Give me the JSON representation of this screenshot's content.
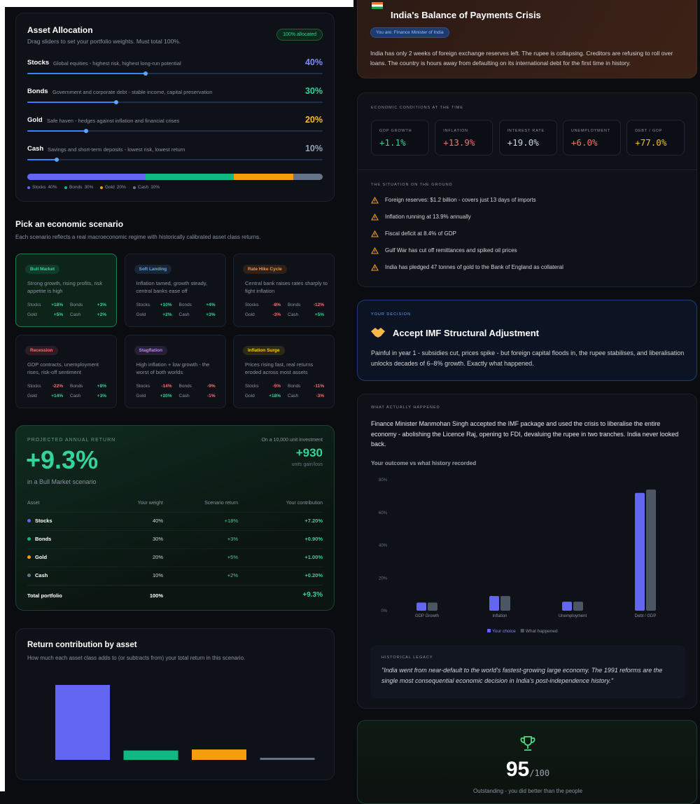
{
  "allocation": {
    "title": "Asset Allocation",
    "subtitle": "Drag sliders to set your portfolio weights. Must total 100%.",
    "badge": "100% allocated",
    "assets": [
      {
        "name": "Stocks",
        "description": "Global equities - highest risk, highest long-run potential",
        "color": "#6366f1",
        "label_color": "#818cf8"
      },
      {
        "name": "Bonds",
        "description": "Government and corporate debt - stable income, capital preservation",
        "color": "#10b981",
        "label_color": "#34d399"
      },
      {
        "name": "Gold",
        "description": "Safe haven - hedges against inflation and financial crises",
        "color": "#f59e0b",
        "label_color": "#fbbf24"
      },
      {
        "name": "Cash",
        "description": "Savings and short-term deposits - lowest risk, lowest return",
        "color": "#64748b",
        "label_color": "#94a3b8"
      }
    ],
    "weights": [
      40,
      30,
      20,
      10
    ],
    "weight_labels": [
      "40%",
      "30%",
      "20%",
      "10%"
    ]
  },
  "scenarios": {
    "title": "Pick an economic scenario",
    "subtitle": "Each scenario reflects a real macroeconomic regime with historically calibrated asset class returns.",
    "items": [
      {
        "name": "Bull Market",
        "description": "Strong growth, rising profits, risk appetite is high",
        "color": "#34d399",
        "returns": [
          "+18%",
          "+3%",
          "+5%",
          "+2%"
        ],
        "selected": true
      },
      {
        "name": "Soft Landing",
        "description": "Inflation tamed, growth steady, central banks ease off",
        "color": "#60a5fa",
        "returns": [
          "+10%",
          "+4%",
          "+2%",
          "+3%"
        ]
      },
      {
        "name": "Rate Hike Cycle",
        "description": "Central bank raises rates sharply to fight inflation",
        "color": "#fb923c",
        "returns": [
          "-8%",
          "-12%",
          "-3%",
          "+5%"
        ]
      },
      {
        "name": "Recession",
        "description": "GDP contracts, unemployment rises, risk-off sentiment",
        "color": "#f87171",
        "returns": [
          "-22%",
          "+8%",
          "+14%",
          "+3%"
        ]
      },
      {
        "name": "Stagflation",
        "description": "High inflation + low growth - the worst of both worlds",
        "color": "#c084fc",
        "returns": [
          "-14%",
          "-9%",
          "+20%",
          "-1%"
        ]
      },
      {
        "name": "Inflation Surge",
        "description": "Prices rising fast, real returns eroded across most assets",
        "color": "#facc15",
        "returns": [
          "-5%",
          "-11%",
          "+18%",
          "-3%"
        ]
      }
    ]
  },
  "projection": {
    "label": "PROJECTED ANNUAL RETURN",
    "value": "+9.3%",
    "caption": "in a Bull Market scenario",
    "investment_label": "On a 10,000 unit investment",
    "gain": "+930",
    "gain_unit": "units gain/loss",
    "headers": [
      "Asset",
      "Your weight",
      "Scenario return",
      "Your contribution"
    ],
    "rows": [
      [
        "Stocks",
        "40%",
        "+18%",
        "+7.20%"
      ],
      [
        "Bonds",
        "30%",
        "+3%",
        "+0.90%"
      ],
      [
        "Gold",
        "20%",
        "+5%",
        "+1.00%"
      ],
      [
        "Cash",
        "10%",
        "+2%",
        "+0.20%"
      ]
    ],
    "total": [
      "Total portfolio",
      "100%",
      "+9.3%"
    ]
  },
  "contribution_chart": {
    "type": "bar",
    "title": "Return contribution by asset",
    "subtitle": "How much each asset class adds to (or subtracts from) your total return in this scenario.",
    "values": [
      7.2,
      0.9,
      1.0,
      0.2
    ],
    "colors": [
      "#6366f1",
      "#10b981",
      "#f59e0b",
      "#64748b"
    ]
  },
  "crisis": {
    "title": "India's Balance of Payments Crisis",
    "role": "You are: Finance Minister of India",
    "intro": "India has only 2 weeks of foreign exchange reserves left. The rupee is collapsing. Creditors are refusing to roll over loans. The country is hours away from defaulting on its international debt for the first time in history."
  },
  "conditions": {
    "label": "ECONOMIC CONDITIONS AT THE TIME",
    "items": [
      {
        "label": "GDP GROWTH",
        "value": "+1.1%",
        "color": "#34d399"
      },
      {
        "label": "INFLATION",
        "value": "+13.9%",
        "color": "#f87171"
      },
      {
        "label": "INTEREST RATE",
        "value": "+19.0%",
        "color": "#cbd5e1"
      },
      {
        "label": "UNEMPLOYMENT",
        "value": "+6.0%",
        "color": "#f87171"
      },
      {
        "label": "DEBT / GDP",
        "value": "+77.0%",
        "color": "#fbbf24"
      }
    ],
    "ground_label": "THE SITUATION ON THE GROUND",
    "ground_items": [
      "Foreign reserves: $1.2 billion - covers just 13 days of imports",
      "Inflation running at 13.9% annually",
      "Fiscal deficit at 8.4% of GDP",
      "Gulf War has cut off remittances and spiked oil prices",
      "India has pledged 47 tonnes of gold to the Bank of England as collateral"
    ]
  },
  "decision": {
    "label": "YOUR DECISION",
    "title": "Accept IMF Structural Adjustment",
    "text": "Painful in year 1 - subsidies cut, prices spike - but foreign capital floods in, the rupee stabilises, and liberalisation unlocks decades of 6–8% growth. Exactly what happened."
  },
  "outcome": {
    "label": "WHAT ACTUALLY HAPPENED",
    "text": "Finance Minister Manmohan Singh accepted the IMF package and used the crisis to liberalise the entire economy - abolishing the Licence Raj, opening to FDI, devaluing the rupee in two tranches. India never looked back.",
    "chart": {
      "type": "bar",
      "title": "Your outcome vs what history recorded",
      "categories": [
        "GDP Growth",
        "Inflation",
        "Unemployment",
        "Debt / GDP"
      ],
      "series": [
        {
          "name": "Your choice",
          "color": "#6366f1",
          "values": [
            5,
            9,
            5.5,
            72
          ]
        },
        {
          "name": "What happened",
          "color": "#4b5563",
          "values": [
            5,
            9,
            5.5,
            74
          ]
        }
      ],
      "ylim": [
        0,
        80
      ],
      "yticks": [
        {
          "value": 0,
          "label": "0%"
        },
        {
          "value": 20,
          "label": "20%"
        },
        {
          "value": 40,
          "label": "40%"
        },
        {
          "value": 60,
          "label": "60%"
        },
        {
          "value": 80,
          "label": "80%"
        }
      ]
    },
    "legacy_label": "HISTORICAL LEGACY",
    "legacy_quote": "\"India went from near-default to the world's fastest-growing large economy. The 1991 reforms are the single most consequential economic decision in India's post-independence history.\""
  },
  "score": {
    "value": "95",
    "max": "/100",
    "caption": "Outstanding - you did better than the people"
  }
}
